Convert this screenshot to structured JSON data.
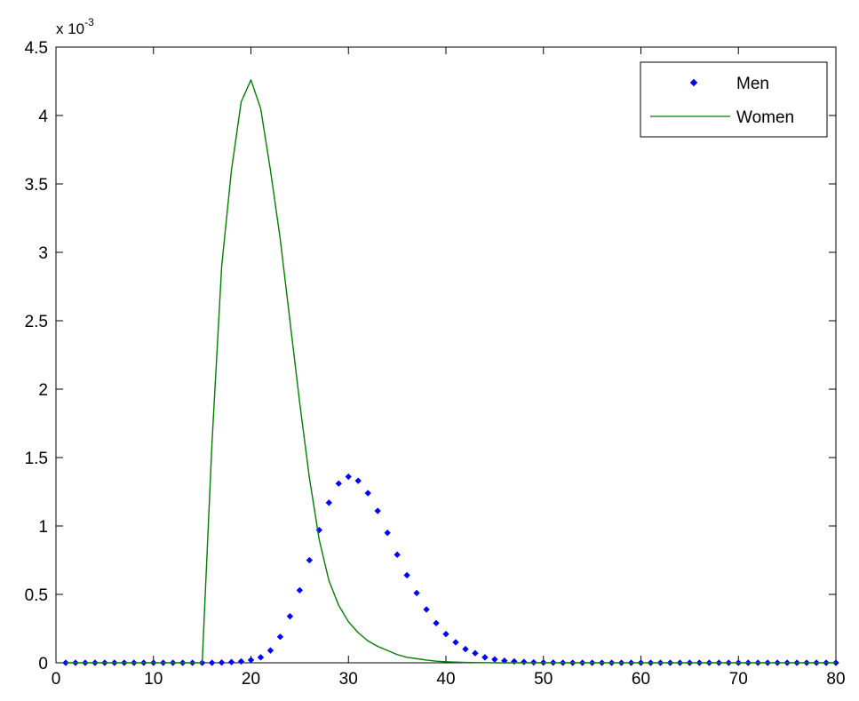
{
  "chart_data": {
    "type": "line",
    "title": "",
    "xlabel": "",
    "ylabel": "",
    "xlim": [
      0,
      80
    ],
    "ylim": [
      0,
      0.0045
    ],
    "y_scale_label": "x 10",
    "y_scale_exponent": "-3",
    "x_ticks": [
      0,
      10,
      20,
      30,
      40,
      50,
      60,
      70,
      80
    ],
    "x_tick_labels": [
      "0",
      "10",
      "20",
      "30",
      "40",
      "50",
      "60",
      "70",
      "80"
    ],
    "y_ticks": [
      0,
      0.0005,
      0.001,
      0.0015,
      0.002,
      0.0025,
      0.003,
      0.0035,
      0.004,
      0.0045
    ],
    "y_tick_labels": [
      "0",
      "0.5",
      "1",
      "1.5",
      "2",
      "2.5",
      "3",
      "3.5",
      "4",
      "4.5"
    ],
    "grid": false,
    "legend_position": "top-right",
    "x": [
      1,
      2,
      3,
      4,
      5,
      6,
      7,
      8,
      9,
      10,
      11,
      12,
      13,
      14,
      15,
      16,
      17,
      18,
      19,
      20,
      21,
      22,
      23,
      24,
      25,
      26,
      27,
      28,
      29,
      30,
      31,
      32,
      33,
      34,
      35,
      36,
      37,
      38,
      39,
      40,
      41,
      42,
      43,
      44,
      45,
      46,
      47,
      48,
      49,
      50,
      51,
      52,
      53,
      54,
      55,
      56,
      57,
      58,
      59,
      60,
      61,
      62,
      63,
      64,
      65,
      66,
      67,
      68,
      69,
      70,
      71,
      72,
      73,
      74,
      75,
      76,
      77,
      78,
      79,
      80
    ],
    "series": [
      {
        "name": "Men",
        "style": "points",
        "color": "#0000ff",
        "values": [
          0,
          0,
          0,
          0,
          0,
          0,
          0,
          0,
          0,
          0,
          0,
          0,
          0,
          0,
          0,
          0,
          2e-06,
          5e-06,
          1e-05,
          2e-05,
          4e-05,
          9e-05,
          0.00019,
          0.00034,
          0.00053,
          0.00075,
          0.00097,
          0.00117,
          0.00131,
          0.00136,
          0.00133,
          0.00124,
          0.00111,
          0.00095,
          0.00079,
          0.00064,
          0.00051,
          0.00039,
          0.00029,
          0.00021,
          0.00015,
          0.0001,
          7e-05,
          4e-05,
          2.5e-05,
          1.5e-05,
          1e-05,
          6e-06,
          3e-06,
          2e-06,
          1e-06,
          0,
          0,
          0,
          0,
          0,
          0,
          0,
          0,
          0,
          0,
          0,
          0,
          0,
          0,
          0,
          0,
          0,
          0,
          0,
          0,
          0,
          0,
          0,
          0,
          0,
          0,
          0,
          0,
          0
        ]
      },
      {
        "name": "Women",
        "style": "line",
        "color": "#008000",
        "values": [
          0,
          0,
          0,
          0,
          0,
          0,
          0,
          0,
          0,
          0,
          0,
          0,
          0,
          0,
          0,
          0.0016,
          0.0029,
          0.0036,
          0.0041,
          0.00426,
          0.00405,
          0.0036,
          0.0031,
          0.0025,
          0.0019,
          0.00135,
          0.0009,
          0.0006,
          0.00042,
          0.0003,
          0.00022,
          0.00016,
          0.00012,
          9e-05,
          6e-05,
          4e-05,
          3e-05,
          2e-05,
          1.2e-05,
          8e-06,
          5e-06,
          3e-06,
          2e-06,
          1e-06,
          0,
          0,
          0,
          0,
          0,
          0,
          0,
          0,
          0,
          0,
          0,
          0,
          0,
          0,
          0,
          0,
          0,
          0,
          0,
          0,
          0,
          0,
          0,
          0,
          0,
          0,
          0,
          0,
          0,
          0,
          0,
          0,
          0,
          0,
          0,
          0
        ]
      }
    ]
  }
}
